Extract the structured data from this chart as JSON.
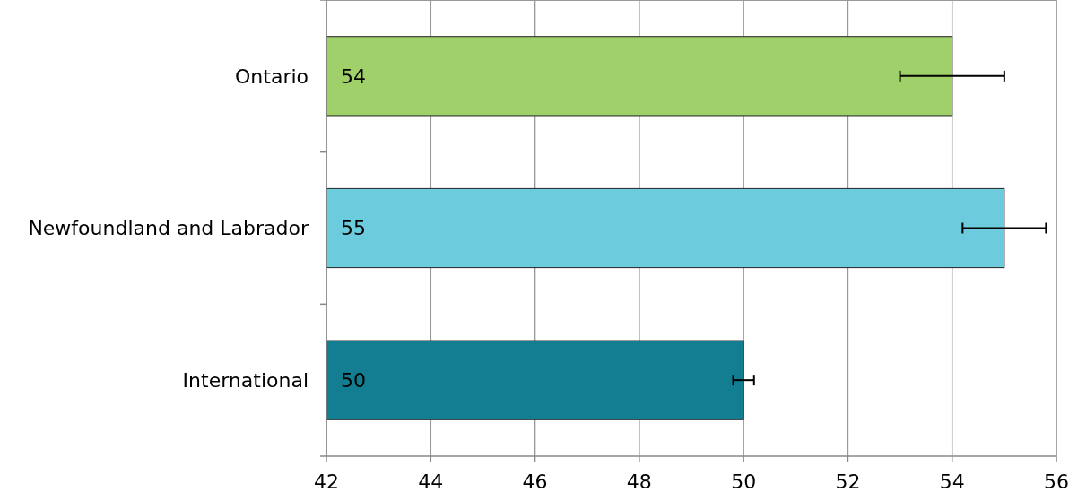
{
  "chart_data": {
    "type": "bar",
    "orientation": "horizontal",
    "categories": [
      "Ontario",
      "Newfoundland and Labrador",
      "International"
    ],
    "values": [
      54,
      55,
      50
    ],
    "colors": [
      "#a0d06a",
      "#6ccbdc",
      "#137d92"
    ],
    "errors": [
      1,
      0.8,
      0.2
    ],
    "xlim": [
      42,
      56
    ],
    "xticks": [
      42,
      44,
      46,
      48,
      50,
      52,
      54,
      56
    ],
    "grid": "x",
    "data_labels": true
  }
}
